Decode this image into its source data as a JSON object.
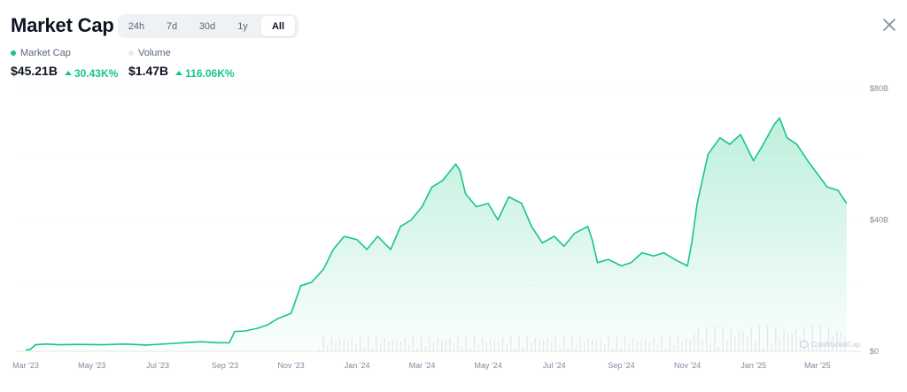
{
  "header": {
    "title": "Market Cap"
  },
  "range_tabs": [
    {
      "label": "24h",
      "active": false
    },
    {
      "label": "7d",
      "active": false
    },
    {
      "label": "30d",
      "active": false
    },
    {
      "label": "1y",
      "active": false
    },
    {
      "label": "All",
      "active": true
    }
  ],
  "close_icon": "close-icon",
  "legend": {
    "market_cap": {
      "label": "Market Cap",
      "color": "#16c784",
      "value": "$45.21B",
      "change": "30.43K%"
    },
    "volume": {
      "label": "Volume",
      "color": "#e6e9ee",
      "value": "$1.47B",
      "change": "116.06K%"
    }
  },
  "watermark": "CoinMarketCap",
  "chart_data": {
    "type": "area",
    "x_tick_labels": [
      "Mar '23",
      "May '23",
      "Jul '23",
      "Sep '23",
      "Nov '23",
      "Jan '24",
      "Mar '24",
      "May '24",
      "Jul '24",
      "Sep '24",
      "Nov '24",
      "Jan '25",
      "Mar '25"
    ],
    "y_tick_labels": [
      "$80B",
      "$40B",
      "$0"
    ],
    "ylim": [
      0,
      80
    ],
    "y_unit": "B USD",
    "grid": true,
    "series": [
      {
        "color": "#16c784",
        "x": [
          "2023-03-01",
          "2023-03-05",
          "2023-03-10",
          "2023-03-20",
          "2023-04-01",
          "2023-04-20",
          "2023-05-10",
          "2023-06-01",
          "2023-06-20",
          "2023-07-10",
          "2023-07-25",
          "2023-08-10",
          "2023-08-25",
          "2023-09-05",
          "2023-09-10",
          "2023-09-20",
          "2023-10-01",
          "2023-10-10",
          "2023-10-20",
          "2023-11-01",
          "2023-11-10",
          "2023-11-20",
          "2023-12-01",
          "2023-12-10",
          "2023-12-20",
          "2024-01-01",
          "2024-01-10",
          "2024-01-20",
          "2024-02-01",
          "2024-02-10",
          "2024-02-20",
          "2024-03-01",
          "2024-03-10",
          "2024-03-20",
          "2024-04-01",
          "2024-04-05",
          "2024-04-10",
          "2024-04-20",
          "2024-05-01",
          "2024-05-10",
          "2024-05-20",
          "2024-06-01",
          "2024-06-10",
          "2024-06-20",
          "2024-07-01",
          "2024-07-10",
          "2024-07-20",
          "2024-08-01",
          "2024-08-05",
          "2024-08-10",
          "2024-08-20",
          "2024-09-01",
          "2024-09-10",
          "2024-09-20",
          "2024-10-01",
          "2024-10-10",
          "2024-10-20",
          "2024-11-01",
          "2024-11-05",
          "2024-11-10",
          "2024-11-20",
          "2024-12-01",
          "2024-12-10",
          "2024-12-20",
          "2025-01-01",
          "2025-01-10",
          "2025-01-20",
          "2025-01-25",
          "2025-02-01",
          "2025-02-10",
          "2025-02-20",
          "2025-03-01",
          "2025-03-10",
          "2025-03-20",
          "2025-03-28"
        ],
        "values": [
          0.4,
          0.5,
          2.0,
          2.2,
          2.0,
          2.1,
          2.0,
          2.2,
          1.9,
          2.3,
          2.6,
          2.9,
          2.6,
          2.6,
          6.0,
          6.2,
          7.0,
          8.0,
          10.0,
          11.5,
          20.0,
          21.0,
          25.0,
          31.0,
          35.0,
          34.0,
          31.0,
          35.0,
          31.0,
          38.0,
          40.0,
          44.0,
          50.0,
          52.0,
          57.0,
          55.0,
          48.0,
          44.0,
          45.0,
          40.0,
          47.0,
          45.0,
          38.0,
          33.0,
          35.0,
          32.0,
          36.0,
          38.0,
          34.0,
          27.0,
          28.0,
          26.0,
          27.0,
          30.0,
          29.0,
          30.0,
          28.0,
          26.0,
          33.0,
          45.0,
          60.0,
          65.0,
          63.0,
          66.0,
          58.0,
          63.0,
          69.0,
          71.0,
          65.0,
          63.0,
          58.0,
          54.0,
          50.0,
          49.0,
          45.0
        ]
      }
    ]
  }
}
